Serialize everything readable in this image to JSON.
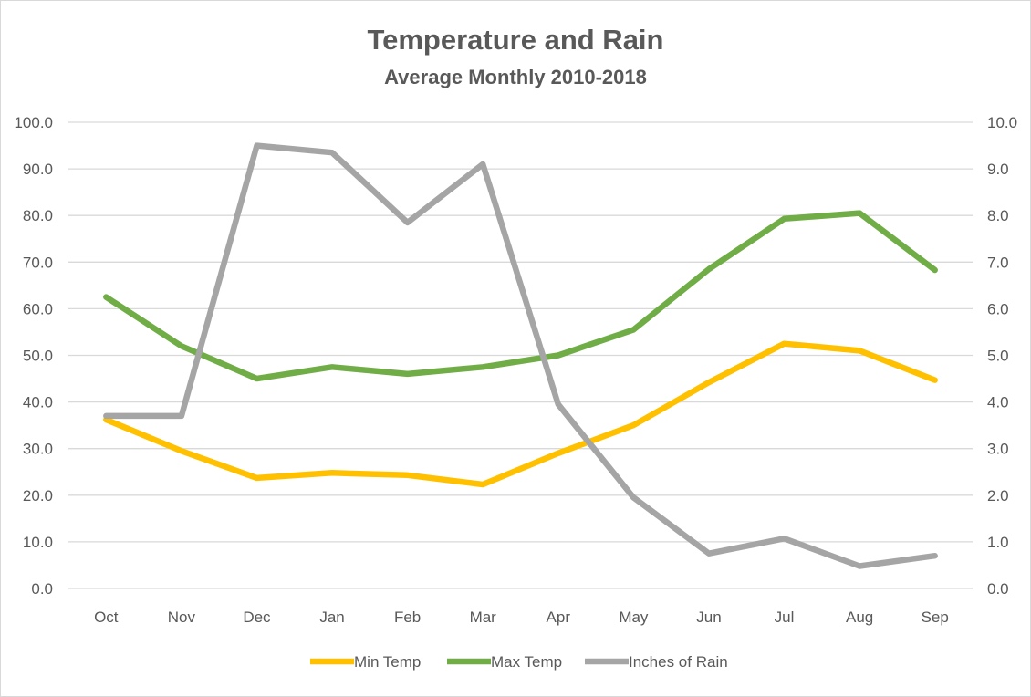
{
  "chart_data": {
    "type": "line",
    "title": "Temperature and Rain",
    "subtitle": "Average Monthly 2010-2018",
    "categories": [
      "Oct",
      "Nov",
      "Dec",
      "Jan",
      "Feb",
      "Mar",
      "Apr",
      "May",
      "Jun",
      "Jul",
      "Aug",
      "Sep"
    ],
    "series": [
      {
        "name": "Min Temp",
        "axis": "left",
        "color": "#FFC000",
        "values": [
          36.2,
          29.5,
          23.7,
          24.8,
          24.3,
          22.3,
          29.0,
          35.0,
          44.2,
          52.5,
          51.0,
          44.7
        ]
      },
      {
        "name": "Max Temp",
        "axis": "left",
        "color": "#70AD47",
        "values": [
          62.5,
          52.0,
          45.0,
          47.5,
          46.0,
          47.5,
          50.0,
          55.5,
          68.5,
          79.3,
          80.5,
          68.3
        ]
      },
      {
        "name": "Inches of Rain",
        "axis": "right",
        "color": "#A5A5A5",
        "values": [
          3.7,
          3.7,
          9.5,
          9.35,
          7.85,
          9.1,
          3.95,
          1.95,
          0.75,
          1.07,
          0.48,
          0.7
        ]
      }
    ],
    "y_left": {
      "min": 0,
      "max": 100,
      "step": 10,
      "ticks": [
        "0.0",
        "10.0",
        "20.0",
        "30.0",
        "40.0",
        "50.0",
        "60.0",
        "70.0",
        "80.0",
        "90.0",
        "100.0"
      ]
    },
    "y_right": {
      "min": 0,
      "max": 10,
      "step": 1,
      "ticks": [
        "0.0",
        "1.0",
        "2.0",
        "3.0",
        "4.0",
        "5.0",
        "6.0",
        "7.0",
        "8.0",
        "9.0",
        "10.0"
      ]
    },
    "grid": true,
    "legend_position": "bottom"
  }
}
